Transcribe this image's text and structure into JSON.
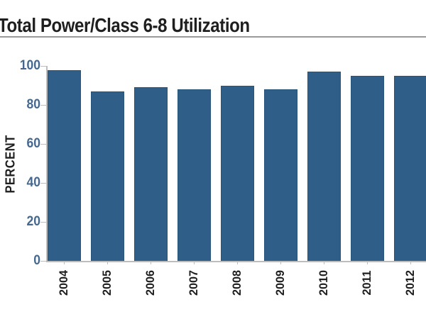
{
  "page": {
    "title": "Total Power/Class 6-8 Utilization"
  },
  "chart_data": {
    "type": "bar",
    "title": "Total Power/Class 6-8 Utilization",
    "categories": [
      "2004",
      "2005",
      "2006",
      "2007",
      "2008",
      "2009",
      "2010",
      "2011",
      "2012"
    ],
    "values": [
      98,
      87,
      89,
      88,
      90,
      88,
      97,
      95,
      95
    ],
    "xlabel": "",
    "ylabel": "PERCENT",
    "ylim": [
      0,
      100
    ],
    "yticks": [
      0,
      20,
      40,
      60,
      80,
      100
    ],
    "grid": false,
    "legend": "none",
    "xtick_rotation_degrees": 90,
    "colors": {
      "bar_fill": "#2F5F88",
      "bar_edge": "#29547A",
      "axis_line": "#bdbdbd",
      "ytick_label": "#46688F",
      "xtick_label": "#1f1f1f",
      "title_text": "#1f1f1f",
      "title_rule": "#9a9a9a",
      "background": "#ffffff"
    }
  }
}
